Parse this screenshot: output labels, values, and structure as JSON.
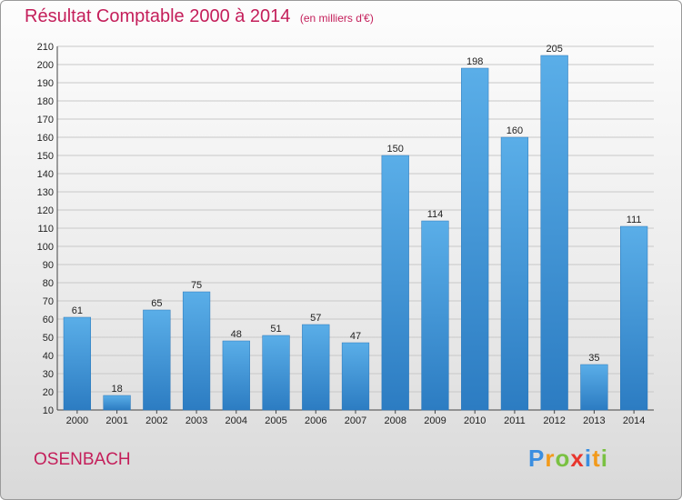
{
  "header": {
    "title": "Résultat Comptable 2000 à 2014",
    "unit": "(en milliers d'€)"
  },
  "commune": "OSENBACH",
  "logo": {
    "letters": [
      "P",
      "r",
      "o",
      "x",
      "i",
      "t",
      "i"
    ]
  },
  "colors": {
    "bar": "#4a9fe0",
    "bar_dark": "#2e7fc4",
    "title": "#c41e5a",
    "grid": "#c8c8c8"
  },
  "chart_data": {
    "type": "bar",
    "title": "Résultat Comptable 2000 à 2014",
    "subtitle": "(en milliers d'€)",
    "xlabel": "",
    "ylabel": "",
    "categories": [
      "2000",
      "2001",
      "2002",
      "2003",
      "2004",
      "2005",
      "2006",
      "2007",
      "2008",
      "2009",
      "2010",
      "2011",
      "2012",
      "2013",
      "2014"
    ],
    "values": [
      61,
      18,
      65,
      75,
      48,
      51,
      57,
      47,
      150,
      114,
      198,
      160,
      205,
      35,
      111
    ],
    "ylim": [
      10,
      210
    ],
    "yticks": [
      10,
      20,
      30,
      40,
      50,
      60,
      70,
      80,
      90,
      100,
      110,
      120,
      130,
      140,
      150,
      160,
      170,
      180,
      190,
      200,
      210
    ],
    "grid": true,
    "legend": "none"
  }
}
